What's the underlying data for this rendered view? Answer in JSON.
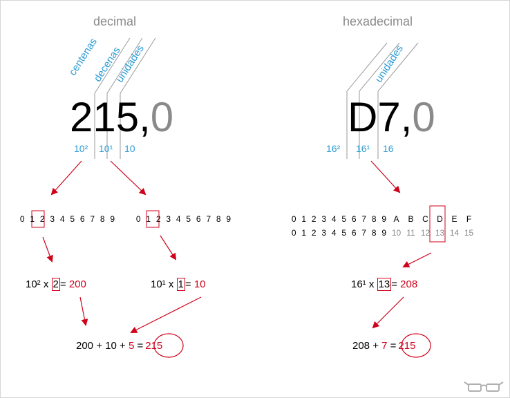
{
  "decimal": {
    "title": "decimal",
    "column_labels": [
      "centenas",
      "decenas",
      "unidades"
    ],
    "number_digits": [
      "2",
      "1",
      "5"
    ],
    "number_sep": ",",
    "number_frac": "0",
    "powers": [
      "10²",
      "10¹",
      "10"
    ],
    "digit_row": [
      "0",
      "1",
      "2",
      "3",
      "4",
      "5",
      "6",
      "7",
      "8",
      "9"
    ],
    "highlight_left": "2",
    "highlight_right": "1",
    "eq1": {
      "base": "10²",
      "x": "x",
      "box": "2",
      "equals": "=",
      "result": "200"
    },
    "eq2": {
      "base": "10¹",
      "x": "x",
      "box": "1",
      "equals": "=",
      "result": "10"
    },
    "final": {
      "a": "200",
      "plus1": "+",
      "b": "10",
      "plus2": "+",
      "c": "5",
      "equals": "=",
      "result": "215"
    }
  },
  "hexadecimal": {
    "title": "hexadecimal",
    "column_labels": [
      "unidades"
    ],
    "number_digits": [
      "D",
      "7"
    ],
    "number_sep": ",",
    "number_frac": "0",
    "powers": [
      "16²",
      "16¹",
      "16"
    ],
    "hex_row": [
      "0",
      "1",
      "2",
      "3",
      "4",
      "5",
      "6",
      "7",
      "8",
      "9",
      "A",
      "B",
      "C",
      "D",
      "E",
      "F"
    ],
    "dec_row": [
      "0",
      "1",
      "2",
      "3",
      "4",
      "5",
      "6",
      "7",
      "8",
      "9",
      "10",
      "11",
      "12",
      "13",
      "14",
      "15"
    ],
    "eq1": {
      "base": "16¹",
      "x": "x",
      "box": "13",
      "equals": "=",
      "result": "208"
    },
    "final": {
      "a": "208",
      "plus1": "+",
      "b": "7",
      "equals": "=",
      "result": "215"
    }
  },
  "colors": {
    "blue": "#2b9bd3",
    "red": "#d0021b",
    "gray": "#8a8a8a"
  },
  "footer_icon": "glasses-icon"
}
